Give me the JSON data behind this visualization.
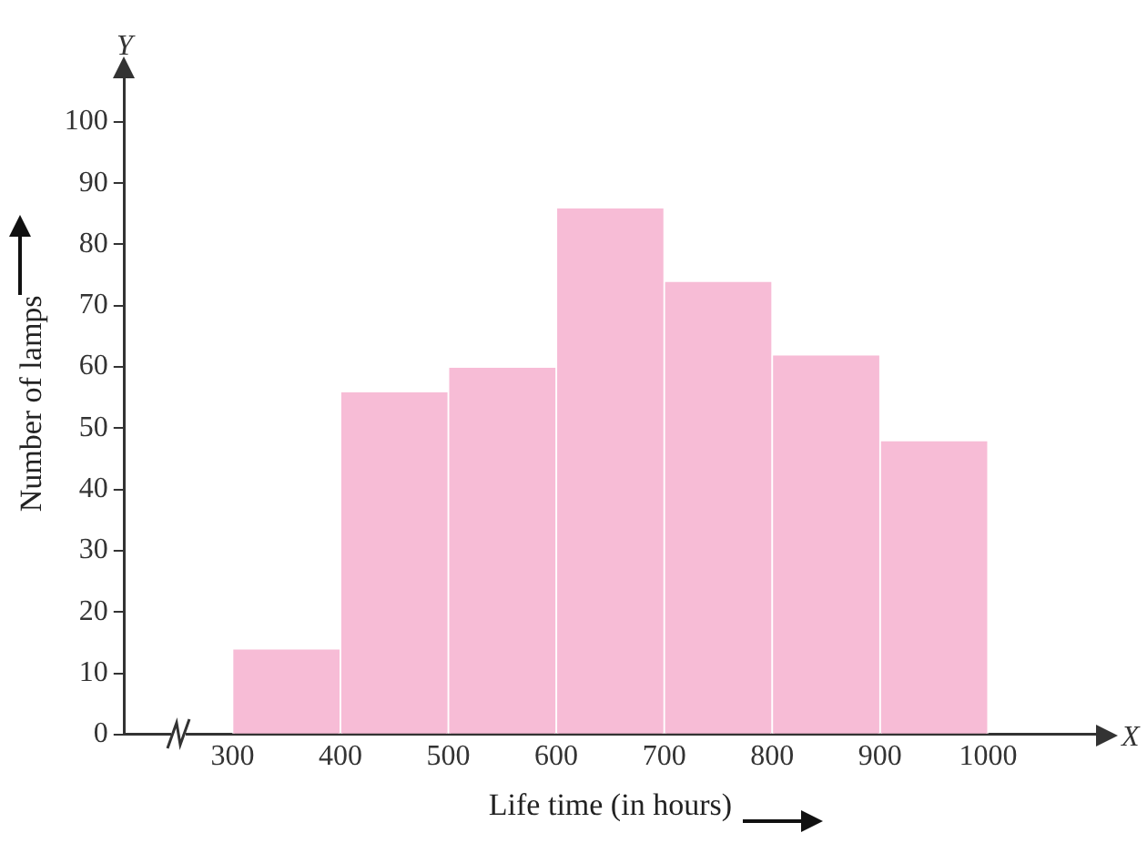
{
  "chart_data": {
    "type": "histogram",
    "xlabel": "Life time (in hours)",
    "ylabel": "Number of lamps",
    "bins": [
      300,
      400,
      500,
      600,
      700,
      800,
      900,
      1000
    ],
    "values": [
      14,
      56,
      60,
      86,
      74,
      62,
      48
    ],
    "color": "#f7bcd6",
    "xlim": [
      200,
      1100
    ],
    "xticks": [
      300,
      400,
      500,
      600,
      700,
      800,
      900,
      1000
    ],
    "ylim": [
      0,
      108
    ],
    "yticks": [
      0,
      10,
      20,
      30,
      40,
      50,
      60,
      70,
      80,
      90,
      100
    ],
    "grid": false,
    "annotations": [
      {
        "text": "Y"
      },
      {
        "text": "X"
      }
    ]
  }
}
